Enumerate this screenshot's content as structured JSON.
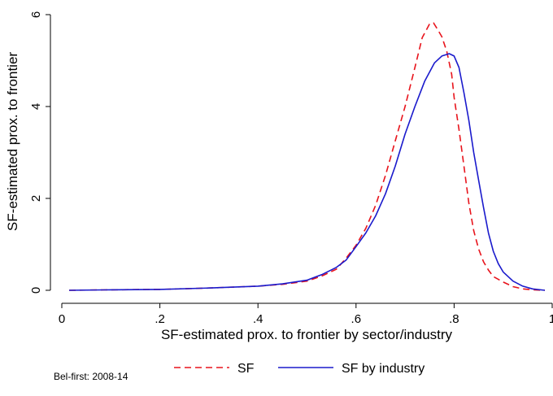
{
  "chart_data": {
    "type": "line",
    "xlabel": "SF-estimated prox. to frontier by sector/industry",
    "ylabel": "SF-estimated prox. to frontier",
    "xlim": [
      0,
      1
    ],
    "ylim": [
      0,
      6
    ],
    "x_ticks": [
      {
        "value": 0,
        "label": "0"
      },
      {
        "value": 0.2,
        "label": ".2"
      },
      {
        "value": 0.4,
        "label": ".4"
      },
      {
        "value": 0.6,
        "label": ".6"
      },
      {
        "value": 0.8,
        "label": ".8"
      },
      {
        "value": 1,
        "label": "1"
      }
    ],
    "y_ticks": [
      {
        "value": 0,
        "label": "0"
      },
      {
        "value": 2,
        "label": "2"
      },
      {
        "value": 4,
        "label": "4"
      },
      {
        "value": 6,
        "label": "6"
      }
    ],
    "grid": false,
    "legend_position": "bottom",
    "note": "Bel-first: 2008-14",
    "series": [
      {
        "name": "SF",
        "color": "#e8141c",
        "dash": "dashed",
        "points": [
          [
            0.015,
            0.0
          ],
          [
            0.1,
            0.01
          ],
          [
            0.2,
            0.02
          ],
          [
            0.3,
            0.05
          ],
          [
            0.4,
            0.09
          ],
          [
            0.45,
            0.13
          ],
          [
            0.5,
            0.2
          ],
          [
            0.53,
            0.31
          ],
          [
            0.56,
            0.46
          ],
          [
            0.58,
            0.7
          ],
          [
            0.6,
            0.98
          ],
          [
            0.62,
            1.35
          ],
          [
            0.64,
            1.85
          ],
          [
            0.66,
            2.5
          ],
          [
            0.68,
            3.25
          ],
          [
            0.7,
            4.0
          ],
          [
            0.72,
            4.85
          ],
          [
            0.735,
            5.5
          ],
          [
            0.75,
            5.8
          ],
          [
            0.758,
            5.82
          ],
          [
            0.765,
            5.7
          ],
          [
            0.775,
            5.52
          ],
          [
            0.785,
            5.2
          ],
          [
            0.795,
            4.7
          ],
          [
            0.8,
            4.2
          ],
          [
            0.81,
            3.5
          ],
          [
            0.82,
            2.7
          ],
          [
            0.83,
            1.9
          ],
          [
            0.84,
            1.3
          ],
          [
            0.85,
            0.9
          ],
          [
            0.86,
            0.62
          ],
          [
            0.87,
            0.44
          ],
          [
            0.88,
            0.3
          ],
          [
            0.9,
            0.18
          ],
          [
            0.92,
            0.08
          ],
          [
            0.94,
            0.03
          ],
          [
            0.96,
            0.01
          ],
          [
            0.985,
            0.0
          ]
        ]
      },
      {
        "name": "SF by industry",
        "color": "#1a1acc",
        "dash": "solid",
        "points": [
          [
            0.015,
            0.0
          ],
          [
            0.1,
            0.01
          ],
          [
            0.2,
            0.02
          ],
          [
            0.3,
            0.05
          ],
          [
            0.4,
            0.09
          ],
          [
            0.45,
            0.14
          ],
          [
            0.5,
            0.22
          ],
          [
            0.53,
            0.34
          ],
          [
            0.56,
            0.5
          ],
          [
            0.58,
            0.66
          ],
          [
            0.6,
            0.95
          ],
          [
            0.62,
            1.25
          ],
          [
            0.64,
            1.62
          ],
          [
            0.66,
            2.1
          ],
          [
            0.68,
            2.7
          ],
          [
            0.7,
            3.4
          ],
          [
            0.72,
            4.0
          ],
          [
            0.74,
            4.55
          ],
          [
            0.76,
            4.95
          ],
          [
            0.775,
            5.1
          ],
          [
            0.79,
            5.15
          ],
          [
            0.8,
            5.1
          ],
          [
            0.81,
            4.85
          ],
          [
            0.82,
            4.3
          ],
          [
            0.83,
            3.7
          ],
          [
            0.84,
            3.0
          ],
          [
            0.85,
            2.4
          ],
          [
            0.86,
            1.8
          ],
          [
            0.87,
            1.25
          ],
          [
            0.88,
            0.85
          ],
          [
            0.89,
            0.58
          ],
          [
            0.9,
            0.4
          ],
          [
            0.92,
            0.2
          ],
          [
            0.94,
            0.09
          ],
          [
            0.96,
            0.03
          ],
          [
            0.985,
            0.0
          ]
        ]
      }
    ]
  }
}
